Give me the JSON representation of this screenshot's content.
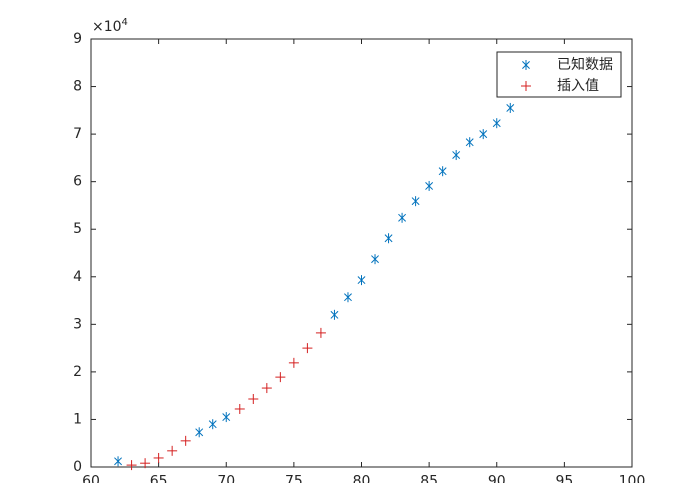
{
  "chart_data": {
    "type": "scatter",
    "y_multiplier_base": "×10",
    "y_multiplier_exponent": "4",
    "xlim": [
      60,
      100
    ],
    "xticks": [
      60,
      65,
      70,
      75,
      80,
      85,
      90,
      95,
      100
    ],
    "ylim": [
      0,
      90000
    ],
    "yticks": [
      {
        "value": 0,
        "label": "0"
      },
      {
        "value": 10000,
        "label": "1"
      },
      {
        "value": 20000,
        "label": "2"
      },
      {
        "value": 30000,
        "label": "3"
      },
      {
        "value": 40000,
        "label": "4"
      },
      {
        "value": 50000,
        "label": "5"
      },
      {
        "value": 60000,
        "label": "6"
      },
      {
        "value": 70000,
        "label": "7"
      },
      {
        "value": 80000,
        "label": "8"
      },
      {
        "value": 90000,
        "label": "9"
      }
    ],
    "legend_position": "upper-right",
    "series": [
      {
        "name": "已知数据",
        "color": "#0072bd",
        "marker": "asterisk",
        "x": [
          62,
          68,
          69,
          70,
          78,
          79,
          80,
          81,
          82,
          83,
          84,
          85,
          86,
          87,
          88,
          89,
          90,
          91
        ],
        "values": [
          1200,
          7300,
          9000,
          10500,
          32000,
          35700,
          39300,
          43700,
          48100,
          52400,
          55900,
          59100,
          62200,
          65600,
          68300,
          70000,
          72300,
          75500
        ]
      },
      {
        "name": "插入值",
        "color": "#d41f1f",
        "marker": "plus",
        "x": [
          63,
          64,
          65,
          66,
          67,
          71,
          72,
          73,
          74,
          75,
          76,
          77
        ],
        "values": [
          400,
          800,
          1900,
          3400,
          5500,
          12200,
          14300,
          16600,
          18900,
          21900,
          25000,
          28200
        ]
      }
    ]
  }
}
